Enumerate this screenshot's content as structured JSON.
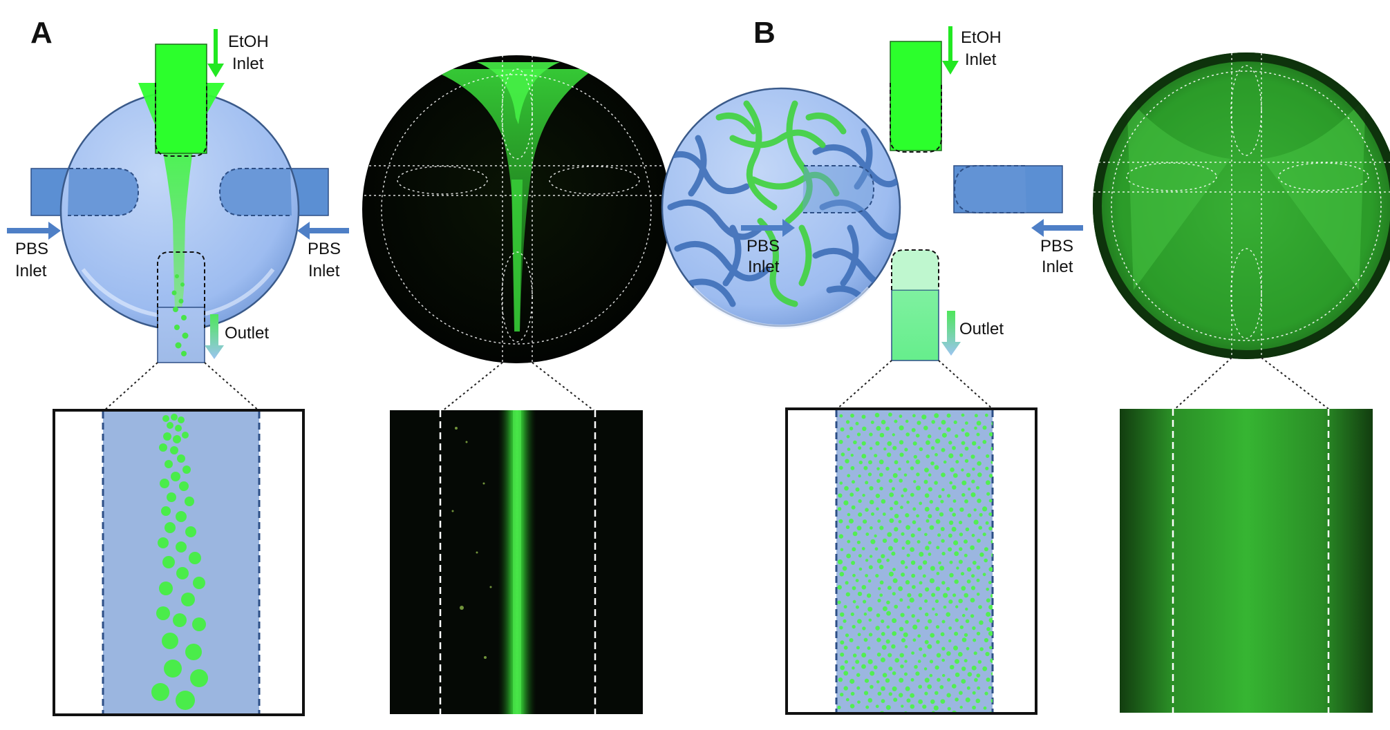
{
  "panels": [
    {
      "letter": "A",
      "etoh_line1": "EtOH",
      "etoh_line2": "Inlet",
      "pbs_left_line1": "PBS",
      "pbs_left_line2": "Inlet",
      "pbs_right_line1": "PBS",
      "pbs_right_line2": "Inlet",
      "outlet": "Outlet"
    },
    {
      "letter": "B",
      "etoh_line1": "EtOH",
      "etoh_line2": "Inlet",
      "pbs_left_line1": "PBS",
      "pbs_left_line2": "Inlet",
      "pbs_right_line1": "PBS",
      "pbs_right_line2": "Inlet",
      "outlet": "Outlet"
    }
  ],
  "colors": {
    "chamber_blue": "#9dbcf0",
    "channel_blue": "#5b8fd3",
    "arrow_blue": "#4e7fc6",
    "etoh_green": "#2cff2c",
    "microscope_bg": "#050a03",
    "fluor_green": "#3cd23c",
    "hydrogel_blue": "#3f6fb8",
    "hydrogel_green": "#58e158"
  },
  "icons": [
    "down-arrow-icon",
    "right-arrow-icon",
    "left-arrow-icon"
  ]
}
